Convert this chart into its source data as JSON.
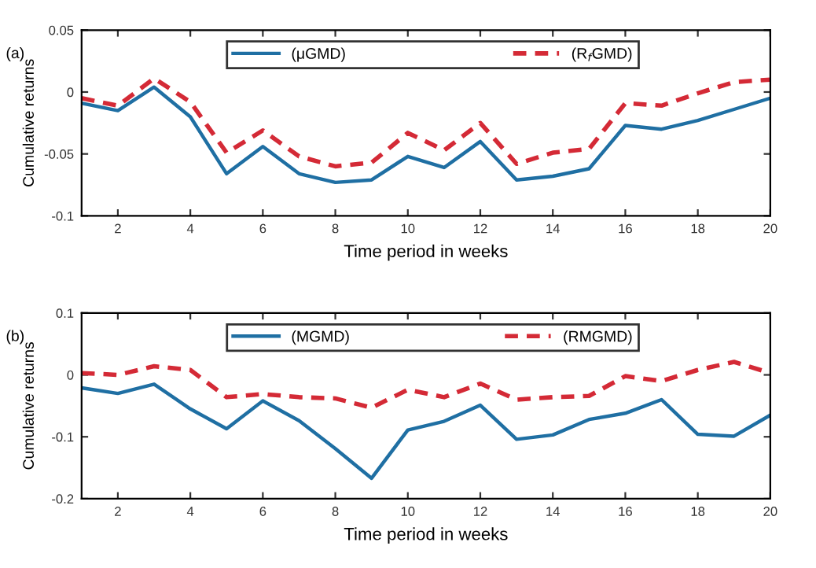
{
  "chart_data": [
    {
      "type": "line",
      "xlabel": "Time period in weeks",
      "ylabel": "Cumulative returns",
      "annotations": [
        "(a)"
      ],
      "x": [
        1,
        2,
        3,
        4,
        5,
        6,
        7,
        8,
        9,
        10,
        11,
        12,
        13,
        14,
        15,
        16,
        17,
        18,
        19,
        20
      ],
      "xlim": [
        1,
        20
      ],
      "xticks": [
        2,
        4,
        6,
        8,
        10,
        12,
        14,
        16,
        18,
        20
      ],
      "ylim": [
        -0.1,
        0.05
      ],
      "yticks": [
        -0.1,
        -0.05,
        0,
        0.05
      ],
      "grid": false,
      "legend": "top",
      "series": [
        {
          "name": "(μGMD)",
          "color": "#1f6fa3",
          "line_style": "solid",
          "values": [
            -0.009,
            -0.015,
            0.004,
            -0.02,
            -0.066,
            -0.044,
            -0.066,
            -0.073,
            -0.071,
            -0.052,
            -0.061,
            -0.04,
            -0.071,
            -0.068,
            -0.062,
            -0.027,
            -0.03,
            -0.023,
            -0.014,
            -0.005
          ]
        },
        {
          "name": "(R$_{f}$GMD)",
          "color": "#d42a36",
          "line_style": "dashed",
          "values": [
            -0.005,
            -0.011,
            0.011,
            -0.008,
            -0.049,
            -0.031,
            -0.052,
            -0.06,
            -0.057,
            -0.033,
            -0.047,
            -0.025,
            -0.058,
            -0.049,
            -0.046,
            -0.009,
            -0.011,
            -0.001,
            0.008,
            0.01
          ]
        }
      ]
    },
    {
      "type": "line",
      "xlabel": "Time period in weeks",
      "ylabel": "Cumulative returns",
      "annotations": [
        "(b)"
      ],
      "x": [
        1,
        2,
        3,
        4,
        5,
        6,
        7,
        8,
        9,
        10,
        11,
        12,
        13,
        14,
        15,
        16,
        17,
        18,
        19,
        20
      ],
      "xlim": [
        1,
        20
      ],
      "xticks": [
        2,
        4,
        6,
        8,
        10,
        12,
        14,
        16,
        18,
        20
      ],
      "ylim": [
        -0.2,
        0.1
      ],
      "yticks": [
        -0.2,
        -0.1,
        0,
        0.1
      ],
      "grid": false,
      "legend": "top",
      "series": [
        {
          "name": "(MGMD)",
          "color": "#1f6fa3",
          "line_style": "solid",
          "values": [
            -0.021,
            -0.03,
            -0.015,
            -0.055,
            -0.087,
            -0.042,
            -0.074,
            -0.119,
            -0.167,
            -0.089,
            -0.075,
            -0.049,
            -0.104,
            -0.097,
            -0.072,
            -0.062,
            -0.04,
            -0.096,
            -0.099,
            -0.065
          ]
        },
        {
          "name": "(RMGMD)",
          "color": "#d42a36",
          "line_style": "dashed",
          "values": [
            0.003,
            0,
            0.014,
            0.008,
            -0.036,
            -0.031,
            -0.036,
            -0.038,
            -0.053,
            -0.024,
            -0.036,
            -0.014,
            -0.04,
            -0.036,
            -0.034,
            -0.002,
            -0.01,
            0.008,
            0.021,
            0.003
          ]
        }
      ]
    }
  ]
}
